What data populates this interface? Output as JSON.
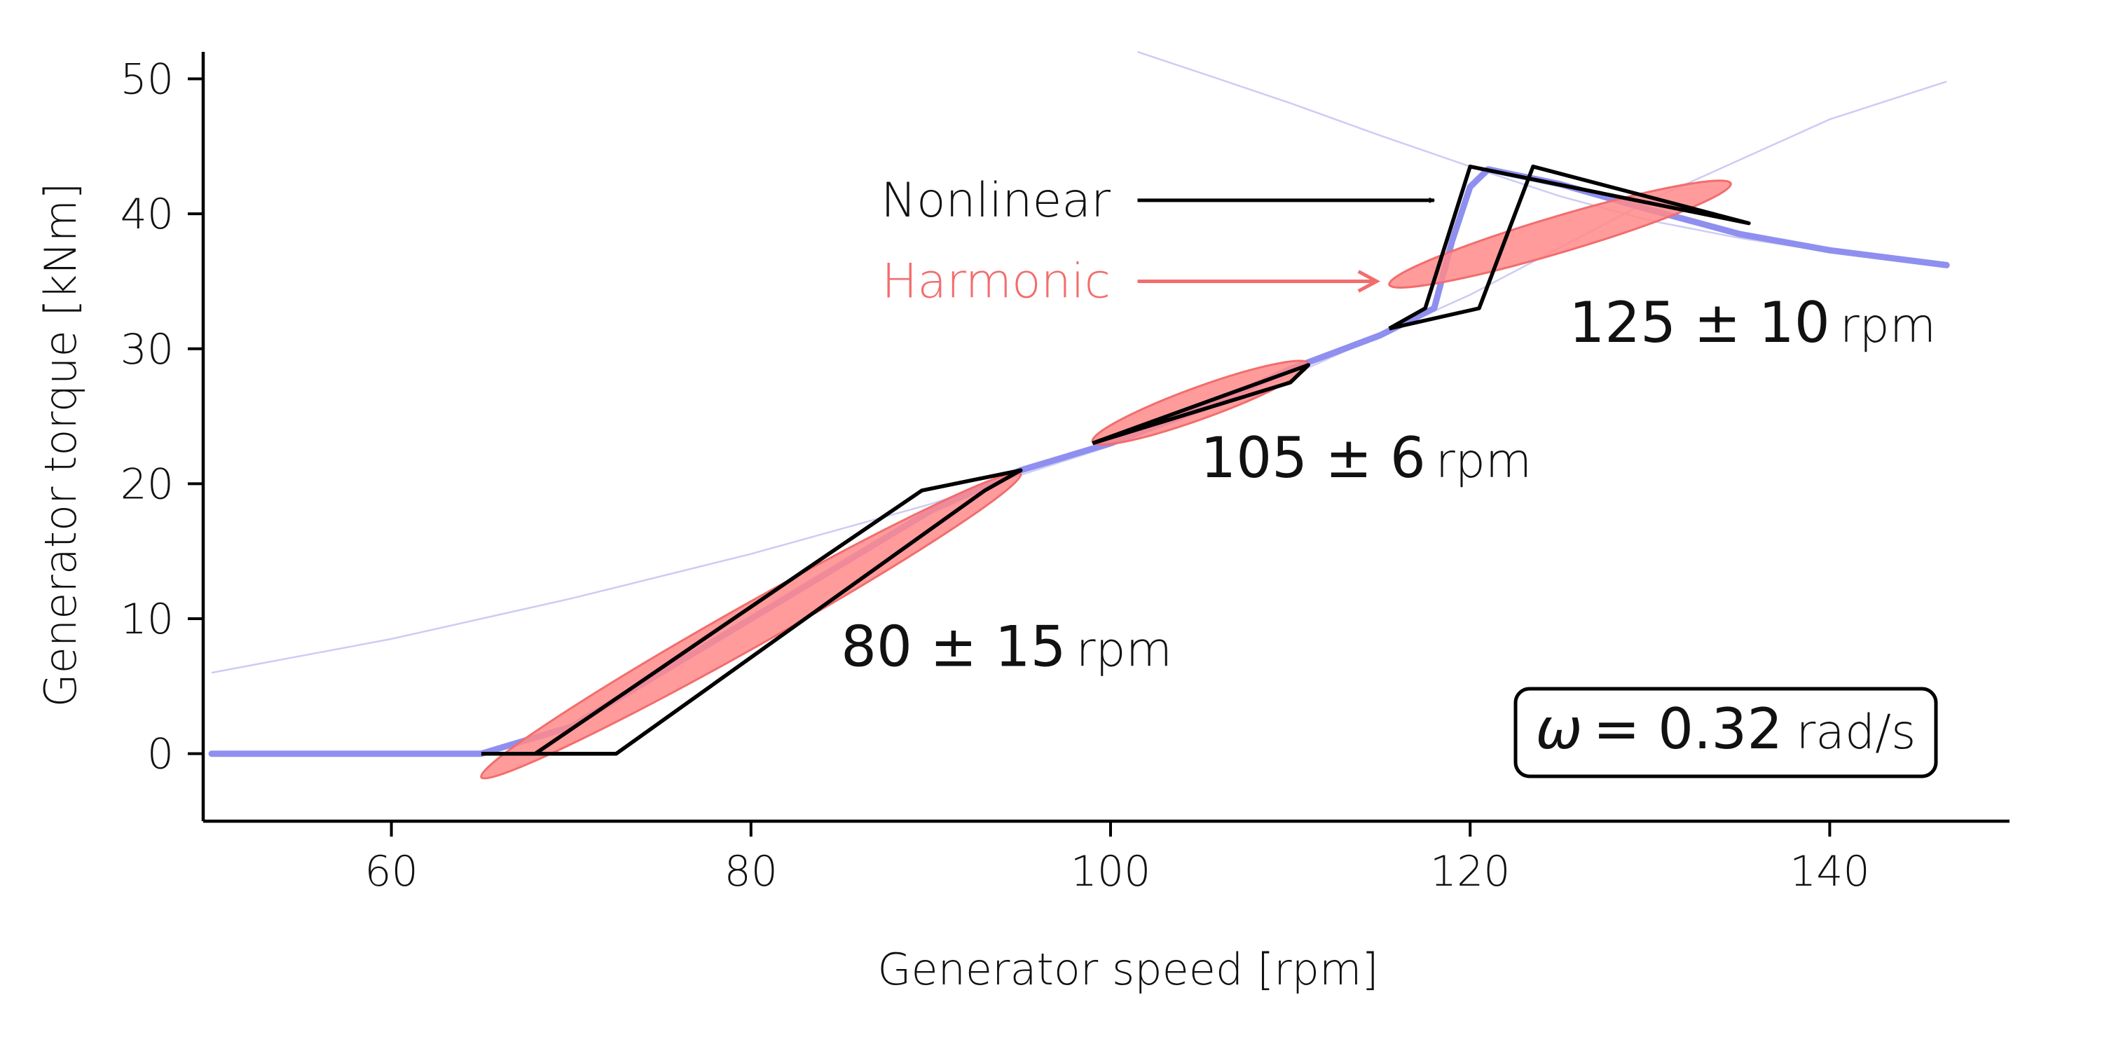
{
  "chart_data": {
    "type": "line",
    "title": "",
    "xlabel": "Generator speed [rpm]",
    "ylabel": "Generator torque [kNm]",
    "xlim": [
      50,
      150
    ],
    "ylim": [
      -5,
      52
    ],
    "xticks": [
      60,
      80,
      100,
      120,
      140
    ],
    "yticks": [
      0,
      10,
      20,
      30,
      40,
      50
    ],
    "grid": false,
    "colors": {
      "steady": "#8f8ff0",
      "envelope": "#ccccf5",
      "harmonic": "#f26d6d",
      "harmonic_fill": "#ff8a8a",
      "nonlinear": "#000000",
      "ellipse_overlap": "#7a4fc0"
    },
    "series": [
      {
        "role": "steady-state",
        "points": [
          [
            50,
            0
          ],
          [
            65,
            0
          ],
          [
            70,
            2
          ],
          [
            75,
            6
          ],
          [
            80,
            10
          ],
          [
            85,
            14
          ],
          [
            90,
            18
          ],
          [
            95,
            21
          ],
          [
            100,
            23
          ],
          [
            105,
            25.5
          ],
          [
            110,
            28.5
          ],
          [
            115,
            31
          ],
          [
            118,
            33
          ],
          [
            119,
            38
          ],
          [
            120,
            42
          ],
          [
            121,
            43.3
          ],
          [
            125,
            42.2
          ],
          [
            130,
            40.3
          ],
          [
            135,
            38.5
          ],
          [
            140,
            37.3
          ],
          [
            146.5,
            36.2
          ]
        ]
      },
      {
        "role": "envelope-decreasing",
        "points": [
          [
            101.5,
            52
          ],
          [
            106,
            50
          ],
          [
            110,
            48.2
          ],
          [
            115,
            45.8
          ],
          [
            120,
            43.5
          ],
          [
            125,
            41.3
          ],
          [
            130,
            39.5
          ],
          [
            135,
            38.2
          ],
          [
            140,
            37.2
          ],
          [
            146.5,
            36.2
          ]
        ]
      },
      {
        "role": "envelope-increasing",
        "points": [
          [
            50,
            6
          ],
          [
            60,
            8.5
          ],
          [
            70,
            11.5
          ],
          [
            80,
            14.8
          ],
          [
            90,
            18.5
          ],
          [
            100,
            22.8
          ],
          [
            110,
            28
          ],
          [
            120,
            34
          ],
          [
            130,
            41
          ],
          [
            140,
            47
          ],
          [
            146.5,
            49.8
          ]
        ]
      }
    ],
    "harmonic_ellipses": [
      {
        "center": [
          80,
          9.5
        ],
        "p1": [
          65,
          -1.5
        ],
        "p2": [
          95,
          21
        ],
        "minor_frac": 0.05
      },
      {
        "center": [
          105,
          26
        ],
        "p1": [
          99,
          23
        ],
        "p2": [
          111,
          28.8
        ],
        "minor_frac": 0.09
      },
      {
        "center": [
          125,
          38.5
        ],
        "p1": [
          115.5,
          34.5
        ],
        "p2": [
          134.5,
          42
        ],
        "minor_frac": 0.07
      }
    ],
    "nonlinear_loops": [
      {
        "points": [
          [
            65,
            0
          ],
          [
            72.5,
            0
          ],
          [
            93,
            19.5
          ],
          [
            95,
            21
          ],
          [
            89.5,
            19.5
          ],
          [
            68,
            0
          ],
          [
            65,
            0
          ]
        ]
      },
      {
        "points": [
          [
            99,
            23
          ],
          [
            110,
            27.5
          ],
          [
            111,
            28.8
          ],
          [
            99,
            23
          ]
        ]
      },
      {
        "points": [
          [
            115.5,
            31.5
          ],
          [
            120.5,
            33
          ],
          [
            123.5,
            43.5
          ],
          [
            135.5,
            39.3
          ],
          [
            120,
            43.5
          ],
          [
            117.5,
            33
          ],
          [
            115.5,
            31.5
          ]
        ]
      }
    ],
    "annotations": [
      {
        "main": "80 ± 15",
        "unit": "rpm",
        "x": 85,
        "y": 6.5
      },
      {
        "main": "105 ± 6",
        "unit": "rpm",
        "x": 105,
        "y": 20.5
      },
      {
        "main": "125 ± 10",
        "unit": "rpm",
        "x": 125.5,
        "y": 30.5
      }
    ],
    "legend": {
      "nonlinear_label": "Nonlinear",
      "harmonic_label": "Harmonic",
      "nonlinear_arrow": {
        "from": [
          101.5,
          41
        ],
        "to": [
          118,
          41
        ]
      },
      "harmonic_arrow": {
        "from": [
          101.5,
          35
        ],
        "to": [
          114.8,
          35
        ]
      },
      "label_x": 100,
      "nonlinear_y": 41,
      "harmonic_y": 35
    },
    "frequency_box": {
      "symbol": "ω",
      "equals": "= 0.32",
      "unit": "rad/s"
    }
  }
}
